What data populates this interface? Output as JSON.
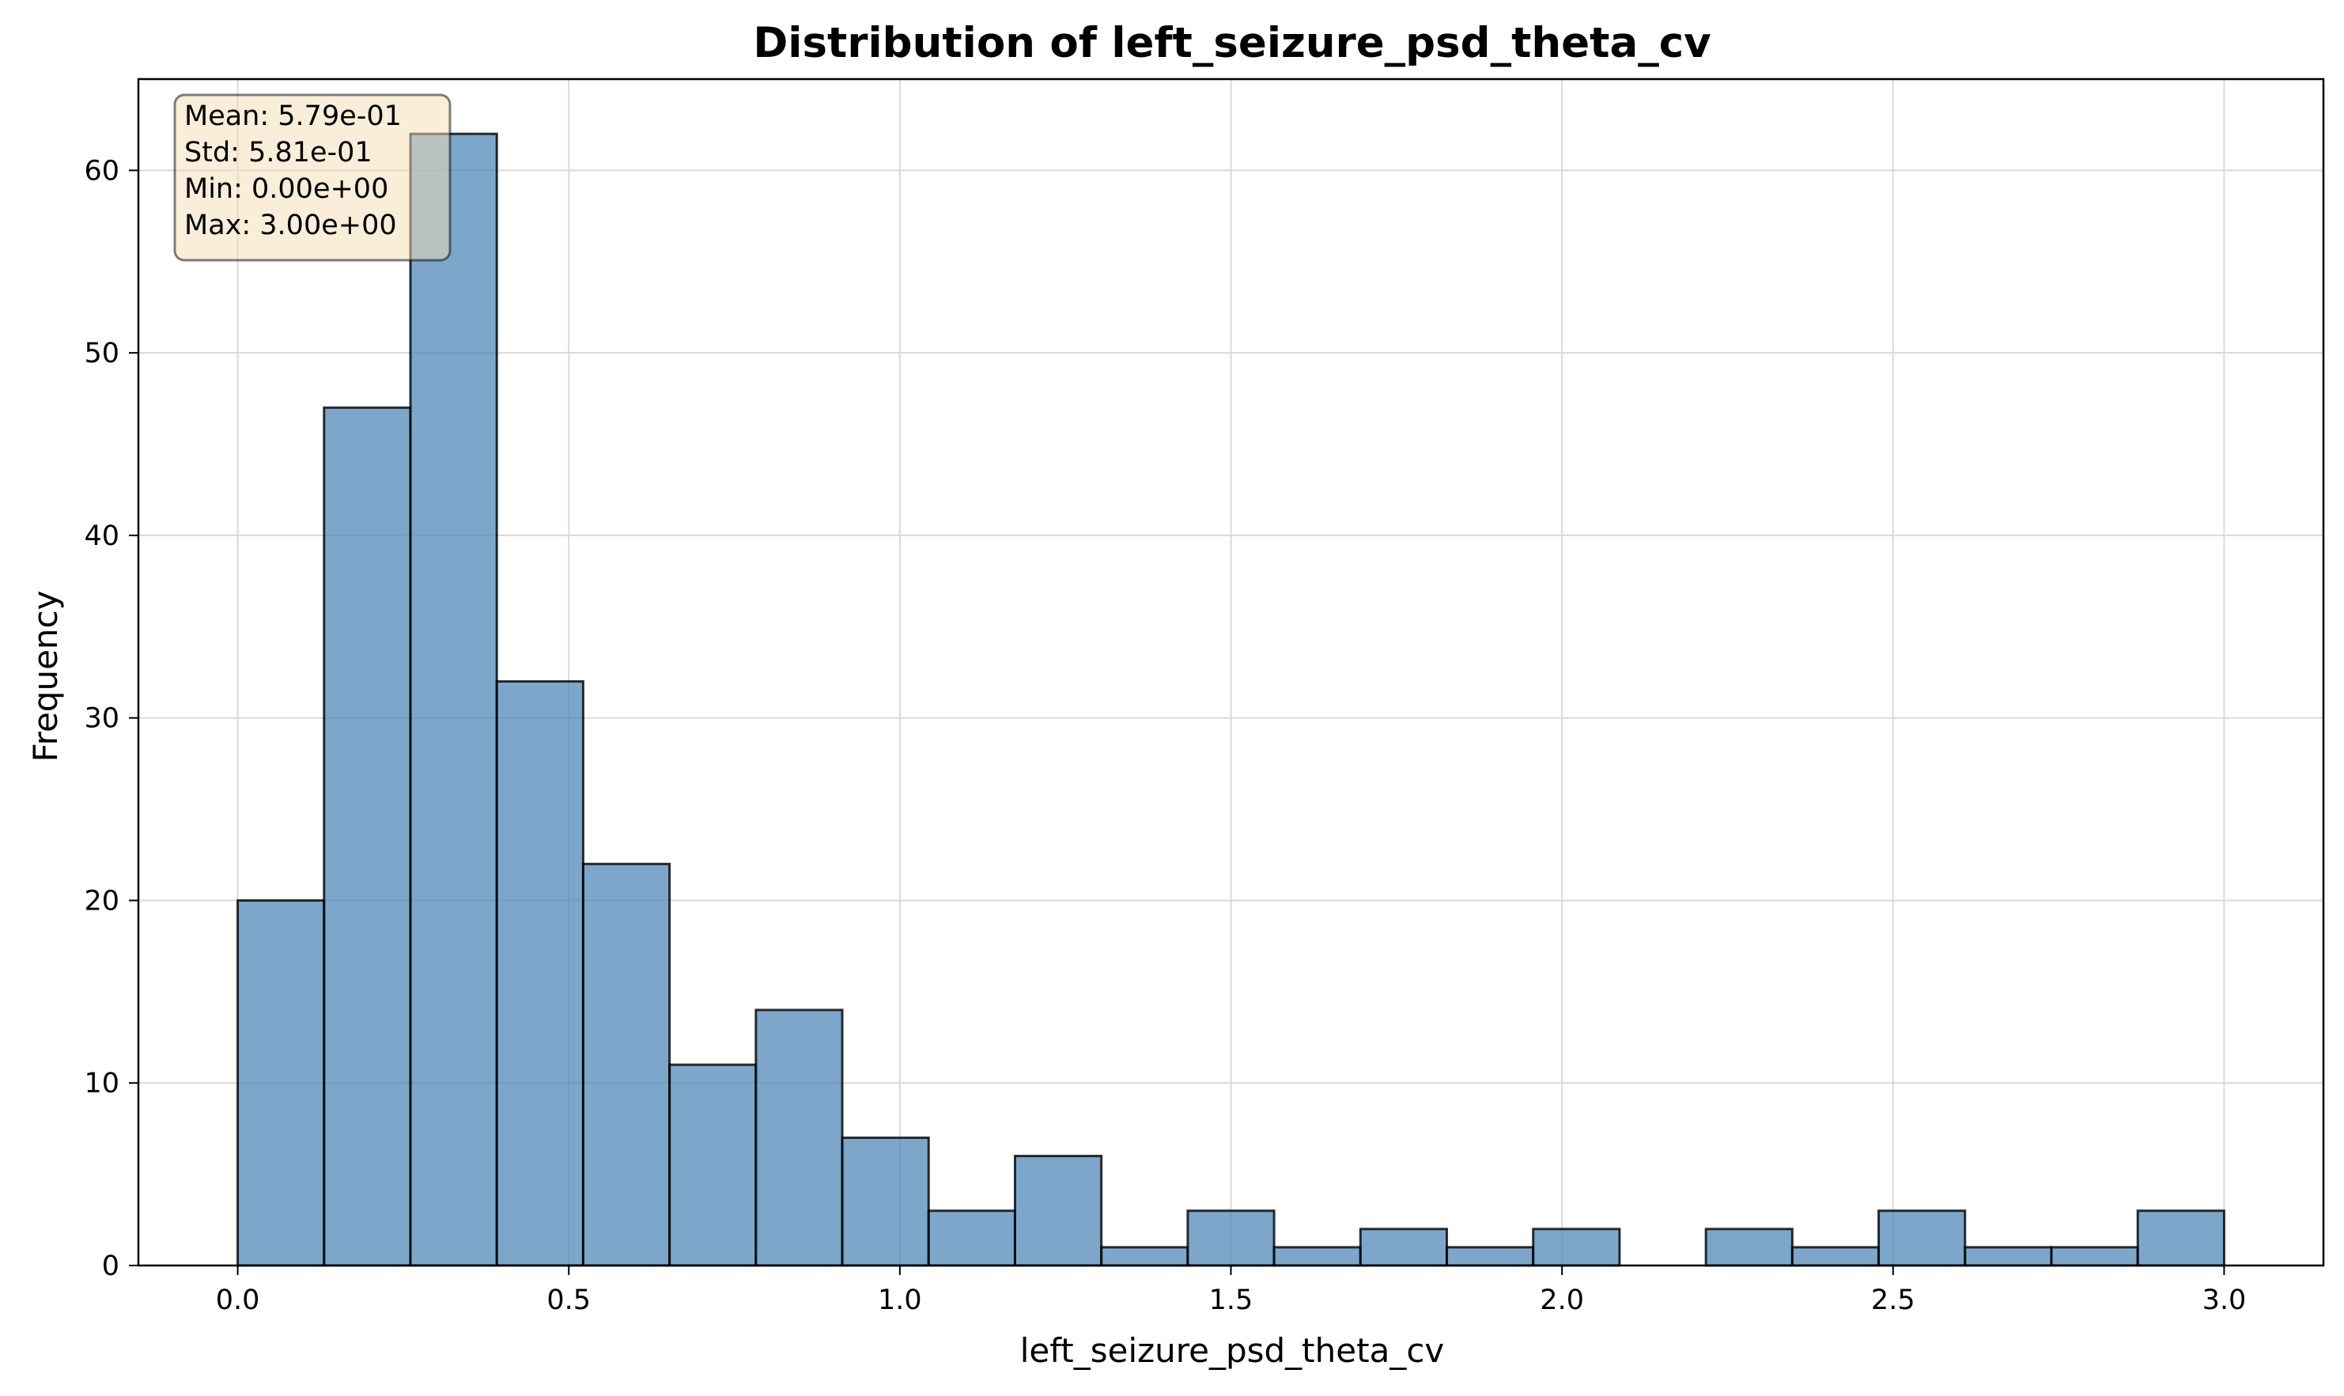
{
  "chart_data": {
    "type": "bar",
    "subtype": "histogram",
    "title": "Distribution of left_seizure_psd_theta_cv",
    "xlabel": "left_seizure_psd_theta_cv",
    "ylabel": "Frequency",
    "xlim": [
      -0.15,
      3.15
    ],
    "ylim": [
      0,
      65
    ],
    "x_ticks": [
      0.0,
      0.5,
      1.0,
      1.5,
      2.0,
      2.5,
      3.0
    ],
    "x_tick_labels": [
      "0.0",
      "0.5",
      "1.0",
      "1.5",
      "2.0",
      "2.5",
      "3.0"
    ],
    "y_ticks": [
      0,
      10,
      20,
      30,
      40,
      50,
      60
    ],
    "y_tick_labels": [
      "0",
      "10",
      "20",
      "30",
      "40",
      "50",
      "60"
    ],
    "bin_range": [
      0.0,
      3.0
    ],
    "bins": 23,
    "counts": [
      20,
      47,
      62,
      32,
      22,
      11,
      14,
      7,
      3,
      6,
      1,
      3,
      1,
      2,
      1,
      2,
      0,
      2,
      1,
      3,
      1,
      1,
      3
    ],
    "grid": true,
    "legend": "none",
    "stats_box": {
      "position": "top-left",
      "lines": [
        "Mean: 5.79e-01",
        "Std: 5.81e-01",
        "Min: 0.00e+00",
        "Max: 3.00e+00"
      ]
    },
    "colors": {
      "bar_fill": "#4682b4",
      "bar_edge": "#000000",
      "grid": "#d9d9d9",
      "stats_box_fill": "#f5deb3",
      "stats_box_edge": "#000000"
    }
  }
}
